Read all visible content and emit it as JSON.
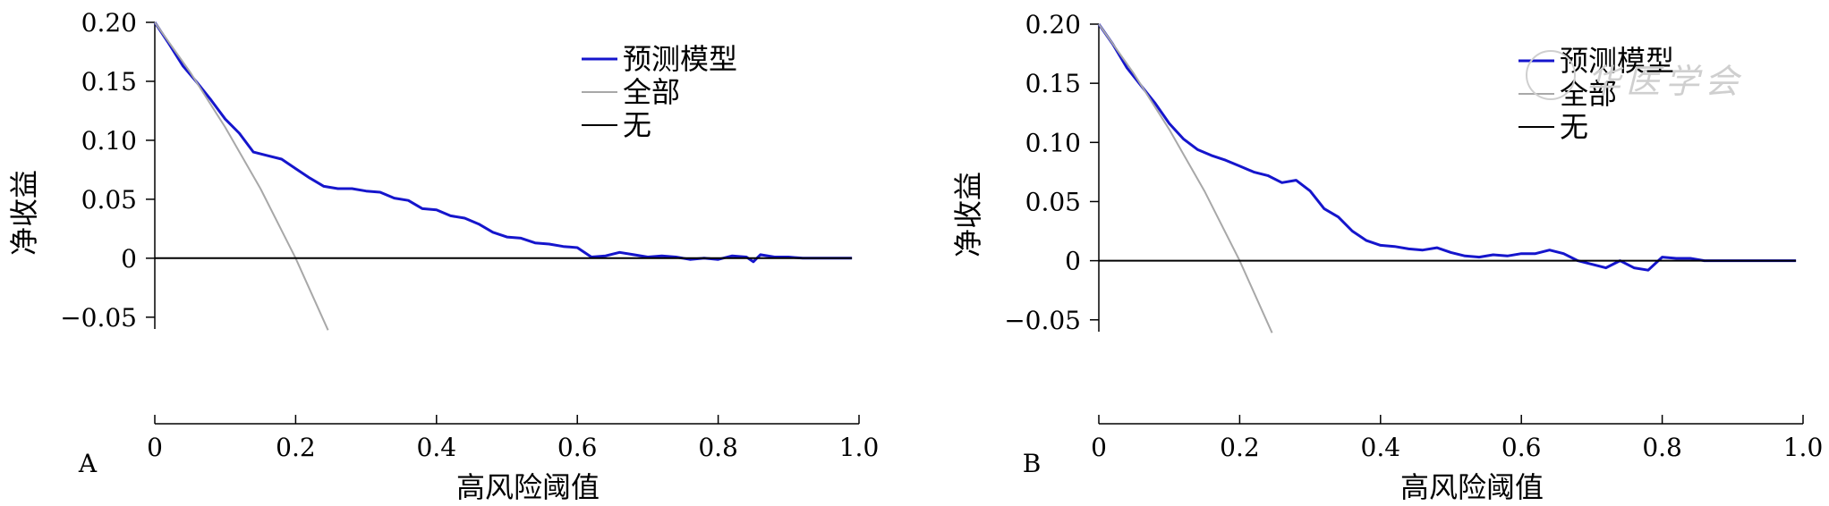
{
  "panels": [
    {
      "id": "A",
      "panel_label": "A",
      "xlabel": "高风险阈值",
      "ylabel": "净收益",
      "legend": [
        "预测模型",
        "全部",
        "无"
      ]
    },
    {
      "id": "B",
      "panel_label": "B",
      "xlabel": "高风险阈值",
      "ylabel": "净收益",
      "legend": [
        "预测模型",
        "全部",
        "无"
      ]
    }
  ],
  "colors": {
    "model": "#1515cc",
    "all": "#a8a8a8",
    "none": "#000000",
    "axis": "#000000"
  },
  "chart_data": [
    {
      "type": "line",
      "panel": "A",
      "xlabel": "高风险阈值",
      "ylabel": "净收益",
      "xlim": [
        0,
        1.0
      ],
      "ylim": [
        -0.06,
        0.2
      ],
      "xticks": [
        0,
        0.2,
        0.4,
        0.6,
        0.8,
        1.0
      ],
      "xtick_labels": [
        "0",
        "0.2",
        "0.4",
        "0.6",
        "0.8",
        "1.0"
      ],
      "yticks": [
        -0.05,
        0,
        0.05,
        0.1,
        0.15,
        0.2
      ],
      "ytick_labels": [
        "−0.05",
        "0",
        "0.05",
        "0.10",
        "0.15",
        "0.20"
      ],
      "legend_position": "top-right",
      "grid": false,
      "series": [
        {
          "name": "预测模型",
          "color": "#1515cc",
          "x": [
            0,
            0.02,
            0.04,
            0.06,
            0.08,
            0.1,
            0.12,
            0.14,
            0.16,
            0.18,
            0.2,
            0.22,
            0.24,
            0.26,
            0.28,
            0.3,
            0.32,
            0.34,
            0.36,
            0.38,
            0.4,
            0.42,
            0.44,
            0.46,
            0.48,
            0.5,
            0.52,
            0.54,
            0.56,
            0.58,
            0.6,
            0.62,
            0.64,
            0.66,
            0.68,
            0.7,
            0.72,
            0.74,
            0.76,
            0.78,
            0.8,
            0.82,
            0.84,
            0.85,
            0.86,
            0.88,
            0.9,
            0.92,
            0.95,
            0.99
          ],
          "y": [
            0.2,
            0.182,
            0.163,
            0.149,
            0.134,
            0.118,
            0.106,
            0.09,
            0.087,
            0.084,
            0.076,
            0.068,
            0.061,
            0.059,
            0.059,
            0.057,
            0.056,
            0.051,
            0.049,
            0.042,
            0.041,
            0.036,
            0.034,
            0.029,
            0.022,
            0.018,
            0.017,
            0.013,
            0.012,
            0.01,
            0.009,
            0.001,
            0.002,
            0.005,
            0.003,
            0.001,
            0.002,
            0.001,
            -0.001,
            0.0,
            -0.001,
            0.002,
            0.001,
            -0.003,
            0.003,
            0.001,
            0.001,
            0.0,
            0.0,
            0.0
          ]
        },
        {
          "name": "全部",
          "color": "#a8a8a8",
          "x": [
            0,
            0.05,
            0.1,
            0.15,
            0.2,
            0.246
          ],
          "y": [
            0.2,
            0.158,
            0.111,
            0.059,
            0.0,
            -0.061
          ]
        },
        {
          "name": "无",
          "color": "#000000",
          "x": [
            0,
            0.99
          ],
          "y": [
            0,
            0
          ]
        }
      ]
    },
    {
      "type": "line",
      "panel": "B",
      "xlabel": "高风险阈值",
      "ylabel": "净收益",
      "xlim": [
        0,
        1.0
      ],
      "ylim": [
        -0.06,
        0.2
      ],
      "xticks": [
        0,
        0.2,
        0.4,
        0.6,
        0.8,
        1.0
      ],
      "xtick_labels": [
        "0",
        "0.2",
        "0.4",
        "0.6",
        "0.8",
        "1.0"
      ],
      "yticks": [
        -0.05,
        0,
        0.05,
        0.1,
        0.15,
        0.2
      ],
      "ytick_labels": [
        "−0.05",
        "0",
        "0.05",
        "0.10",
        "0.15",
        "0.20"
      ],
      "legend_position": "top-right",
      "grid": false,
      "series": [
        {
          "name": "预测模型",
          "color": "#1515cc",
          "x": [
            0,
            0.02,
            0.04,
            0.06,
            0.08,
            0.1,
            0.12,
            0.14,
            0.16,
            0.18,
            0.2,
            0.22,
            0.24,
            0.26,
            0.28,
            0.3,
            0.32,
            0.34,
            0.36,
            0.38,
            0.4,
            0.42,
            0.44,
            0.46,
            0.48,
            0.5,
            0.52,
            0.54,
            0.56,
            0.58,
            0.6,
            0.62,
            0.64,
            0.66,
            0.68,
            0.7,
            0.72,
            0.74,
            0.76,
            0.78,
            0.8,
            0.82,
            0.84,
            0.86,
            0.9,
            0.95,
            0.99
          ],
          "y": [
            0.2,
            0.183,
            0.163,
            0.148,
            0.133,
            0.116,
            0.103,
            0.094,
            0.089,
            0.085,
            0.08,
            0.075,
            0.072,
            0.066,
            0.068,
            0.059,
            0.044,
            0.037,
            0.025,
            0.017,
            0.013,
            0.012,
            0.01,
            0.009,
            0.011,
            0.007,
            0.004,
            0.003,
            0.005,
            0.004,
            0.006,
            0.006,
            0.009,
            0.006,
            0.0,
            -0.003,
            -0.006,
            0.0,
            -0.006,
            -0.008,
            0.003,
            0.002,
            0.002,
            0.0,
            0.0,
            0.0,
            0.0
          ]
        },
        {
          "name": "全部",
          "color": "#a8a8a8",
          "x": [
            0,
            0.05,
            0.1,
            0.15,
            0.2,
            0.246
          ],
          "y": [
            0.2,
            0.158,
            0.111,
            0.059,
            0.0,
            -0.061
          ]
        },
        {
          "name": "无",
          "color": "#000000",
          "x": [
            0,
            0.99
          ],
          "y": [
            0,
            0
          ]
        }
      ]
    }
  ]
}
